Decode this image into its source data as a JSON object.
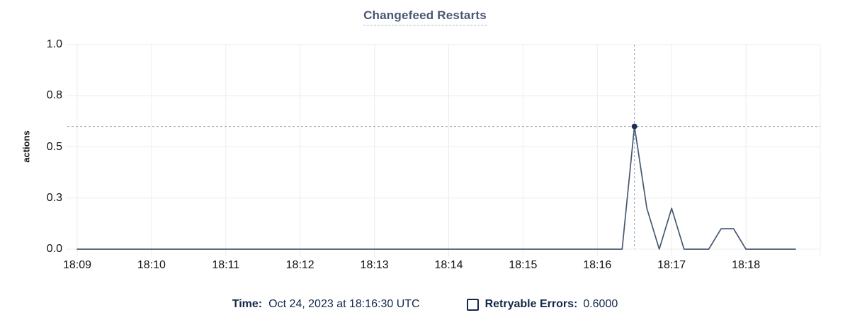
{
  "chart_data": {
    "type": "line",
    "title": "Changefeed Restarts",
    "ylabel": "actions",
    "xlabel": "",
    "ylim": [
      0,
      1
    ],
    "grid": true,
    "y_ticks": [
      {
        "value": 0,
        "label": "0.0"
      },
      {
        "value": 0.25,
        "label": "0.3"
      },
      {
        "value": 0.5,
        "label": "0.5"
      },
      {
        "value": 0.75,
        "label": "0.8"
      },
      {
        "value": 1,
        "label": "1.0"
      }
    ],
    "x_domain": [
      "18:08:52",
      "18:19:00"
    ],
    "x_ticks": [
      "18:09",
      "18:10",
      "18:11",
      "18:12",
      "18:13",
      "18:14",
      "18:15",
      "18:16",
      "18:17",
      "18:18"
    ],
    "x_extra_gridlines": [
      "18:19"
    ],
    "series": [
      {
        "name": "Retryable Errors",
        "color": "#475872",
        "points": [
          [
            "18:09:00",
            0
          ],
          [
            "18:16:20",
            0
          ],
          [
            "18:16:30",
            0.6
          ],
          [
            "18:16:40",
            0.2
          ],
          [
            "18:16:50",
            0
          ],
          [
            "18:17:00",
            0.2
          ],
          [
            "18:17:10",
            0
          ],
          [
            "18:17:30",
            0
          ],
          [
            "18:17:40",
            0.1
          ],
          [
            "18:17:50",
            0.1
          ],
          [
            "18:18:00",
            0
          ],
          [
            "18:18:40",
            0
          ]
        ]
      }
    ],
    "crosshair": {
      "time": "18:16:30",
      "value": 0.6
    }
  },
  "footer": {
    "time_label": "Time:",
    "time_value": "Oct 24, 2023 at 18:16:30 UTC",
    "legend": [
      {
        "label": "Retryable Errors:",
        "value": "0.6000"
      }
    ]
  },
  "colors": {
    "line": "#475872",
    "dot": "#1c2f52",
    "crosshair": "#8f9fb3",
    "grid": "#ececec",
    "title_text": "#475872",
    "title_underline": "#a6b7c9",
    "axis_text": "#111111",
    "footer_text": "#13294b"
  }
}
